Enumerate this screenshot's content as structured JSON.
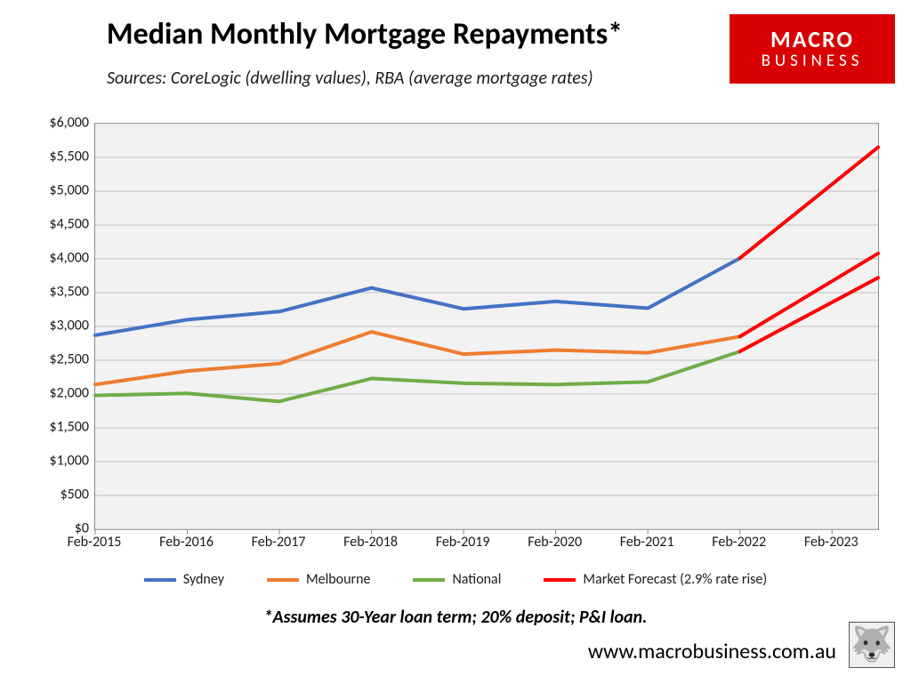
{
  "title": "Median Monthly Mortgage Repayments*",
  "subtitle": "Sources: CoreLogic (dwelling values), RBA (average mortgage rates)",
  "brand": {
    "line1": "MACRO",
    "line2": "BUSINESS"
  },
  "footnote": "*Assumes 30-Year loan term; 20% deposit; P&I loan.",
  "site_url": "www.macrobusiness.com.au",
  "chart": {
    "type": "line",
    "plot_background": "#f2f2f2",
    "plot_border": "#8a8a8a",
    "grid_color": "#c0c0c0",
    "xlabels": [
      "Feb-2015",
      "Feb-2016",
      "Feb-2017",
      "Feb-2018",
      "Feb-2019",
      "Feb-2020",
      "Feb-2021",
      "Feb-2022",
      "Feb-2023"
    ],
    "x_domain": [
      0,
      8.5
    ],
    "ylim": [
      0,
      6000
    ],
    "ytick_step": 500,
    "ylabel_format": "currency",
    "line_width": 4,
    "series": {
      "sydney": {
        "label": "Sydney",
        "color": "#4472c4",
        "x": [
          0,
          1,
          2,
          3,
          4,
          5,
          6,
          7
        ],
        "y": [
          2870,
          3100,
          3220,
          3570,
          3260,
          3370,
          3270,
          4010
        ]
      },
      "melbourne": {
        "label": "Melbourne",
        "color": "#ed7d31",
        "x": [
          0,
          1,
          2,
          3,
          4,
          5,
          6,
          7
        ],
        "y": [
          2140,
          2340,
          2450,
          2920,
          2590,
          2650,
          2610,
          2850
        ]
      },
      "national": {
        "label": "National",
        "color": "#70ad47",
        "x": [
          0,
          1,
          2,
          3,
          4,
          5,
          6,
          7
        ],
        "y": [
          1980,
          2010,
          1890,
          2230,
          2160,
          2140,
          2180,
          2630
        ]
      },
      "forecast": {
        "label": "Market Forecast (2.9% rate rise)",
        "color": "#ff0000",
        "segments": [
          {
            "x": [
              7,
              8.5
            ],
            "y": [
              4010,
              5650
            ]
          },
          {
            "x": [
              7,
              8.5
            ],
            "y": [
              2850,
              4080
            ]
          },
          {
            "x": [
              7,
              8.5
            ],
            "y": [
              2630,
              3720
            ]
          }
        ]
      }
    },
    "legend_order": [
      "sydney",
      "melbourne",
      "national",
      "forecast"
    ]
  },
  "typography": {
    "title_fontsize": 34,
    "subtitle_fontsize": 20,
    "axis_fontsize": 16,
    "legend_fontsize": 16,
    "footnote_fontsize": 20,
    "url_fontsize": 24
  }
}
